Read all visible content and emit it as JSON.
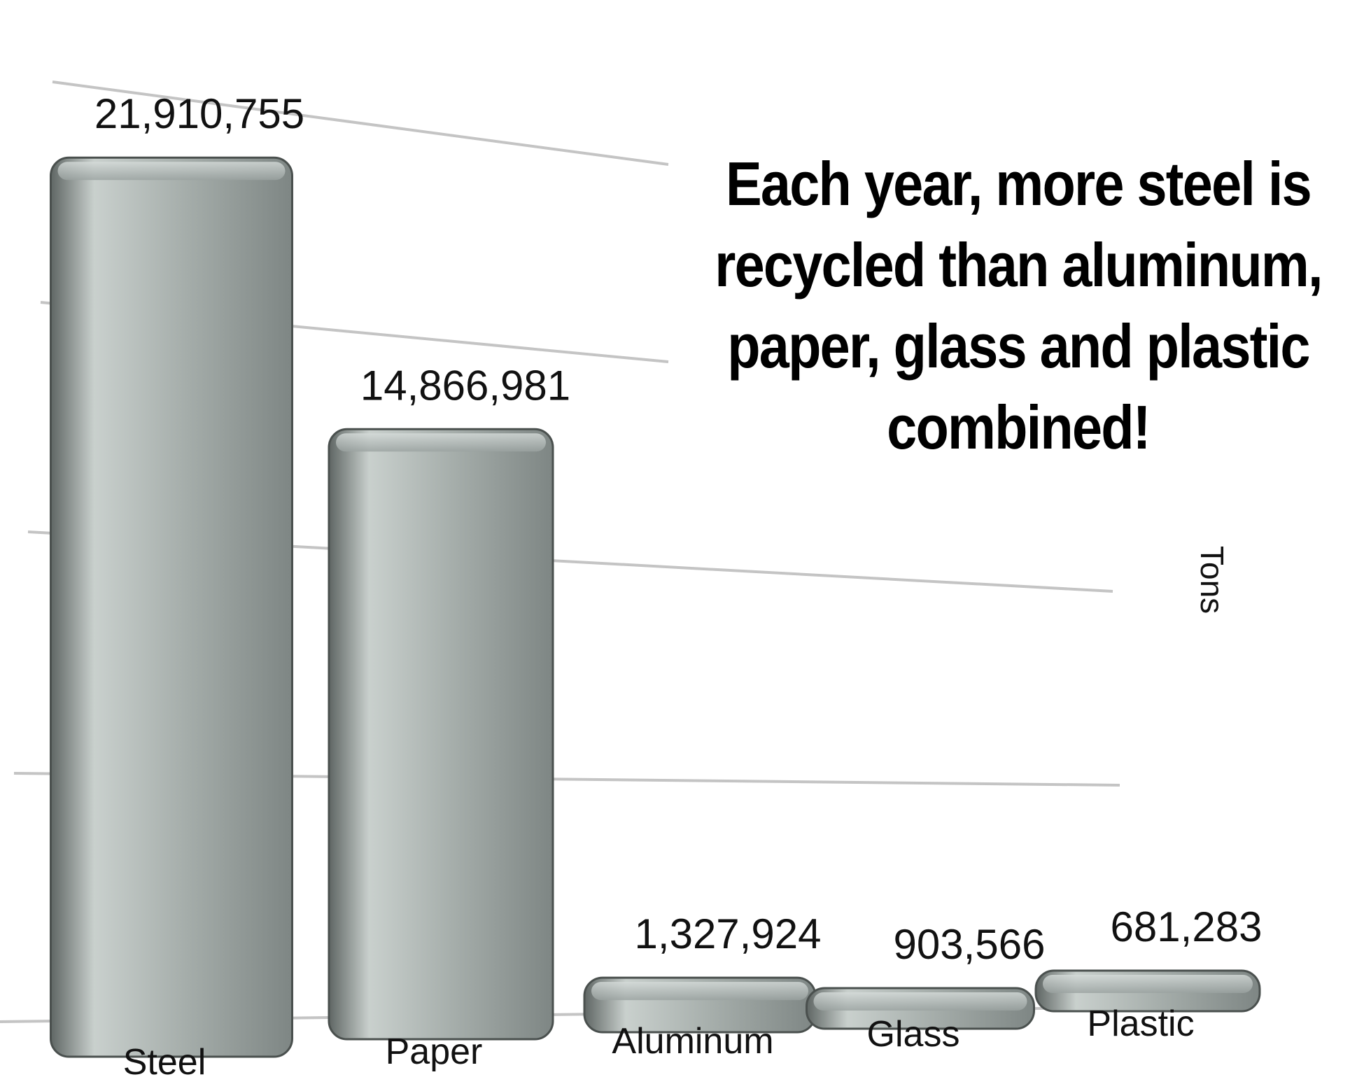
{
  "chart_data": {
    "type": "bar",
    "categories": [
      "Steel",
      "Paper",
      "Aluminum",
      "Glass",
      "Plastic"
    ],
    "values": [
      21910755,
      14866981,
      1327924,
      903566,
      681283
    ],
    "value_labels": [
      "21,910,755",
      "14,866,981",
      "1,327,924",
      "903,566",
      "681,283"
    ],
    "title": "Each year, more steel is recycled than aluminum, paper, glass and plastic combined!",
    "xlabel": "",
    "ylabel": "Tons",
    "ylim": [
      0,
      22000000
    ],
    "grid": true,
    "legend": "none",
    "bar_color": "#a3aba8"
  }
}
